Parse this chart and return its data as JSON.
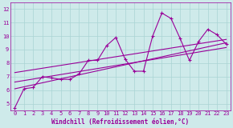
{
  "xlabel": "Windchill (Refroidissement éolien,°C)",
  "background_color": "#ceeaea",
  "line_color": "#990099",
  "grid_color": "#aad4d4",
  "xlim": [
    -0.5,
    23.5
  ],
  "ylim": [
    4.5,
    12.5
  ],
  "xticks": [
    0,
    1,
    2,
    3,
    4,
    5,
    6,
    7,
    8,
    9,
    10,
    11,
    12,
    13,
    14,
    15,
    16,
    17,
    18,
    19,
    20,
    21,
    22,
    23
  ],
  "yticks": [
    5,
    6,
    7,
    8,
    9,
    10,
    11,
    12
  ],
  "line1_x": [
    0,
    1,
    2,
    3,
    4,
    5,
    6,
    7,
    8,
    9,
    10,
    11,
    12,
    13,
    14,
    15,
    16,
    17,
    18,
    19,
    20,
    21,
    22,
    23
  ],
  "line1_y": [
    4.7,
    6.1,
    6.2,
    7.0,
    6.9,
    6.8,
    6.8,
    7.2,
    8.2,
    8.2,
    9.3,
    9.9,
    8.3,
    7.4,
    7.4,
    10.0,
    11.7,
    11.3,
    9.8,
    8.2,
    9.6,
    10.5,
    10.1,
    9.4
  ],
  "line2_x": [
    0,
    23
  ],
  "line2_y": [
    6.1,
    9.5
  ],
  "line3_x": [
    0,
    23
  ],
  "line3_y": [
    6.6,
    9.15
  ],
  "line4_x": [
    0,
    23
  ],
  "line4_y": [
    7.3,
    9.75
  ]
}
